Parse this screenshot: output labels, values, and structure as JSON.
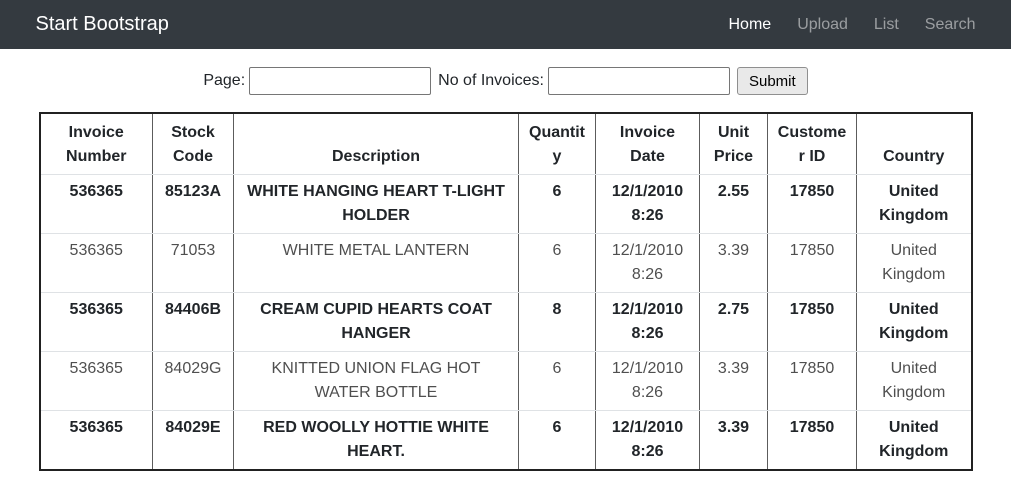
{
  "colors": {
    "navbar_bg": "#343a40",
    "nav_active": "#ffffff",
    "nav_inactive": "rgba(255,255,255,0.5)"
  },
  "navbar": {
    "brand": "Start Bootstrap",
    "items": [
      {
        "label": "Home",
        "active": true
      },
      {
        "label": "Upload",
        "active": false
      },
      {
        "label": "List",
        "active": false
      },
      {
        "label": "Search",
        "active": false
      }
    ]
  },
  "form": {
    "page_label": "Page:",
    "page_value": "",
    "page_placeholder": "",
    "invoices_label": "No of Invoices:",
    "invoices_value": "",
    "invoices_placeholder": "",
    "submit_label": "Submit"
  },
  "table": {
    "headers": [
      "Invoice Number",
      "Stock Code",
      "Description",
      "Quantity",
      "Invoice Date",
      "Unit Price",
      "Customer ID",
      "Country"
    ],
    "rows": [
      {
        "emphasized": true,
        "cells": [
          "536365",
          "85123A",
          "WHITE HANGING HEART T-LIGHT HOLDER",
          "6",
          "12/1/2010 8:26",
          "2.55",
          "17850",
          "United Kingdom"
        ]
      },
      {
        "emphasized": false,
        "cells": [
          "536365",
          "71053",
          "WHITE METAL LANTERN",
          "6",
          "12/1/2010 8:26",
          "3.39",
          "17850",
          "United Kingdom"
        ]
      },
      {
        "emphasized": true,
        "cells": [
          "536365",
          "84406B",
          "CREAM CUPID HEARTS COAT HANGER",
          "8",
          "12/1/2010 8:26",
          "2.75",
          "17850",
          "United Kingdom"
        ]
      },
      {
        "emphasized": false,
        "cells": [
          "536365",
          "84029G",
          "KNITTED UNION FLAG HOT WATER BOTTLE",
          "6",
          "12/1/2010 8:26",
          "3.39",
          "17850",
          "United Kingdom"
        ]
      },
      {
        "emphasized": true,
        "cells": [
          "536365",
          "84029E",
          "RED WOOLLY HOTTIE WHITE HEART.",
          "6",
          "12/1/2010 8:26",
          "3.39",
          "17850",
          "United Kingdom"
        ]
      }
    ]
  }
}
